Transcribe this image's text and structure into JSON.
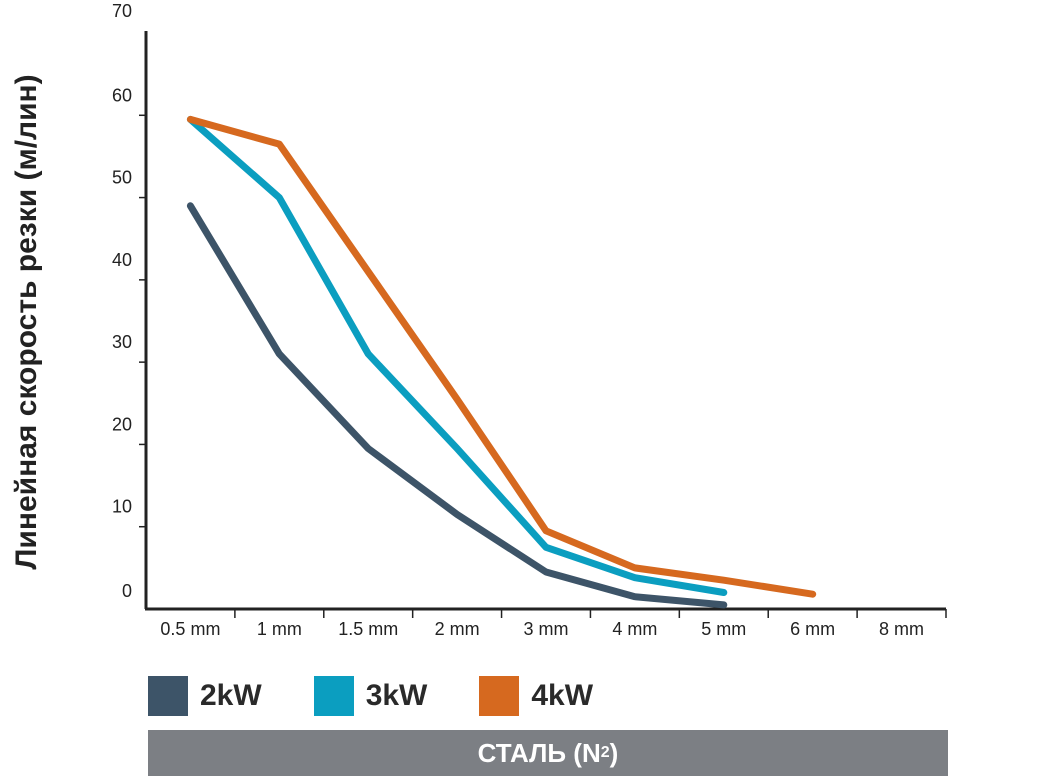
{
  "chart_data": {
    "type": "line",
    "title": "",
    "xlabel": "",
    "ylabel": "Линейная скорость резки (м/лин)",
    "categories": [
      "0.5 mm",
      "1 mm",
      "1.5 mm",
      "2 mm",
      "3 mm",
      "4 mm",
      "5 mm",
      "6 mm",
      "8 mm"
    ],
    "ylim": [
      0,
      70
    ],
    "yticks": [
      "0",
      "10",
      "20",
      "30",
      "40",
      "50",
      "60",
      "70"
    ],
    "grid": false,
    "legend_position": "bottom",
    "series": [
      {
        "name": "2kW",
        "color": "#3d5468",
        "values": [
          49,
          31,
          19.5,
          11.5,
          4.5,
          1.5,
          0.5,
          null,
          null
        ]
      },
      {
        "name": "3kW",
        "color": "#0b9ec0",
        "values": [
          59.5,
          50,
          31,
          19.5,
          7.5,
          3.8,
          2,
          null,
          null
        ]
      },
      {
        "name": "4kW",
        "color": "#d6691f",
        "values": [
          59.5,
          56.5,
          41,
          25.5,
          9.5,
          5,
          3.5,
          1.8,
          null
        ]
      }
    ]
  },
  "legend": {
    "items": [
      {
        "label": "2kW",
        "color": "#3d5468"
      },
      {
        "label": "3kW",
        "color": "#0b9ec0"
      },
      {
        "label": "4kW",
        "color": "#d6691f"
      }
    ]
  },
  "banner": {
    "text": "СТАЛЬ (N",
    "subscript": "2",
    "suffix": ")",
    "color": "#7c7f84"
  }
}
